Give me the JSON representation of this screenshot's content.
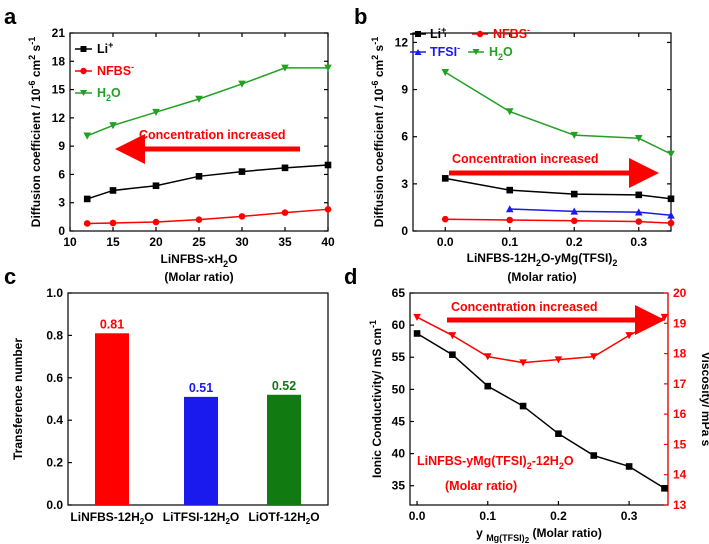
{
  "chart_data": [
    {
      "panel": "a",
      "type": "line",
      "xlabel": "LiNFBS-xH2O",
      "xlabel_note": "(Molar ratio)",
      "ylabel": "Diffusion coefficient / 10-6 cm2 s-1",
      "xlim": [
        10,
        40
      ],
      "ylim": [
        0,
        21
      ],
      "xticks": [
        10,
        15,
        20,
        25,
        30,
        35,
        40
      ],
      "yticks": [
        0,
        3,
        6,
        9,
        12,
        15,
        18,
        21
      ],
      "annotation": "Concentration increased",
      "series": [
        {
          "name": "Li+",
          "color": "#000000",
          "marker": "square",
          "x": [
            12,
            15,
            20,
            25,
            30,
            35,
            40
          ],
          "y": [
            3.4,
            4.3,
            4.8,
            5.8,
            6.3,
            6.7,
            7.0
          ]
        },
        {
          "name": "NFBS-",
          "color": "#ff0000",
          "marker": "circle",
          "x": [
            12,
            15,
            20,
            25,
            30,
            35,
            40
          ],
          "y": [
            0.8,
            0.85,
            0.95,
            1.2,
            1.55,
            1.95,
            2.3
          ]
        },
        {
          "name": "H2O",
          "color": "#22a022",
          "marker": "triangle-down",
          "x": [
            12,
            15,
            20,
            25,
            30,
            35,
            40
          ],
          "y": [
            10.1,
            11.2,
            12.6,
            14.0,
            15.6,
            17.3,
            17.3
          ]
        }
      ]
    },
    {
      "panel": "b",
      "type": "line",
      "xlabel": "LiNFBS-12H2O-yMg(TFSI)2",
      "xlabel_note": "(Molar ratio)",
      "ylabel": "Diffusion coefficient / 10-6 cm2 s-1",
      "xlim": [
        -0.05,
        0.35
      ],
      "ylim": [
        0,
        12.6
      ],
      "xticks": [
        0.0,
        0.1,
        0.2,
        0.3
      ],
      "yticks": [
        0,
        3,
        6,
        9,
        12
      ],
      "annotation": "Concentration increased",
      "series": [
        {
          "name": "Li+",
          "color": "#000000",
          "marker": "square",
          "x": [
            0.0,
            0.1,
            0.2,
            0.3,
            0.35
          ],
          "y": [
            3.35,
            2.6,
            2.35,
            2.3,
            2.05
          ]
        },
        {
          "name": "NFBS-",
          "color": "#ff0000",
          "marker": "circle",
          "x": [
            0.0,
            0.1,
            0.2,
            0.3,
            0.35
          ],
          "y": [
            0.75,
            0.7,
            0.65,
            0.6,
            0.5
          ]
        },
        {
          "name": "TFSI-",
          "color": "#1a1aee",
          "marker": "triangle-up",
          "x": [
            0.1,
            0.2,
            0.3,
            0.35
          ],
          "y": [
            1.4,
            1.25,
            1.2,
            1.0
          ]
        },
        {
          "name": "H2O",
          "color": "#22a022",
          "marker": "triangle-down",
          "x": [
            0.0,
            0.1,
            0.2,
            0.3,
            0.35
          ],
          "y": [
            10.1,
            7.6,
            6.1,
            5.9,
            4.9
          ]
        }
      ]
    },
    {
      "panel": "c",
      "type": "bar",
      "ylabel": "Transference number",
      "ylim": [
        0.0,
        1.0
      ],
      "yticks": [
        0.0,
        0.2,
        0.4,
        0.6,
        0.8,
        1.0
      ],
      "categories": [
        "LiNFBS-12H2O",
        "LiTFSI-12H2O",
        "LiOTf-12H2O"
      ],
      "values": [
        0.81,
        0.51,
        0.52
      ],
      "data_labels": [
        "0.81",
        "0.51",
        "0.52"
      ],
      "colors": [
        "#ff0000",
        "#1a1aee",
        "#117a11"
      ]
    },
    {
      "panel": "d",
      "type": "line",
      "xlabel": "y Mg(TFSI)2 (Molar ratio)",
      "ylabel_left": "Ionic Conductivity/ mS cm-1",
      "ylabel_right": "Viscosity/ mPa s",
      "xlim": [
        -0.01,
        0.355
      ],
      "ylim_left": [
        32,
        65
      ],
      "ylim_right": [
        13,
        20
      ],
      "xticks": [
        0.0,
        0.1,
        0.2,
        0.3
      ],
      "yticks_left": [
        35,
        40,
        45,
        50,
        55,
        60,
        65
      ],
      "yticks_right": [
        13,
        14,
        15,
        16,
        17,
        18,
        19,
        20
      ],
      "annotation": "Concentration increased",
      "inset_label": "LiNFBS-yMg(TFSI)2-12H2O",
      "inset_label_note": "(Molar ratio)",
      "series": [
        {
          "name": "Ionic Conductivity",
          "axis": "left",
          "color": "#000000",
          "marker": "square",
          "x": [
            0.0,
            0.05,
            0.1,
            0.15,
            0.2,
            0.25,
            0.3,
            0.35
          ],
          "y": [
            58.7,
            55.4,
            50.5,
            47.4,
            43.1,
            39.7,
            38.0,
            34.6
          ]
        },
        {
          "name": "Viscosity",
          "axis": "right",
          "color": "#ff0000",
          "marker": "triangle-down",
          "x": [
            0.0,
            0.05,
            0.1,
            0.15,
            0.2,
            0.25,
            0.3,
            0.35
          ],
          "y": [
            19.2,
            18.6,
            17.9,
            17.7,
            17.8,
            17.9,
            18.6,
            19.2
          ]
        }
      ]
    }
  ],
  "panels": {
    "a": {
      "letter": "a"
    },
    "b": {
      "letter": "b"
    },
    "c": {
      "letter": "c"
    },
    "d": {
      "letter": "d"
    }
  },
  "legend": {
    "li": "Li",
    "li_sup": "+",
    "nfbs": "NFBS",
    "nfbs_sup": "-",
    "tfsi": "TFSI",
    "tfsi_sup": "-",
    "h2o_h": "H",
    "h2o_sub": "2",
    "h2o_o": "O"
  },
  "labels": {
    "annotation": "Concentration increased",
    "diff_a": "Diffusion coefficient / 10",
    "diff_b": "-6",
    "diff_c": " cm",
    "diff_d": "2",
    "diff_e": " s",
    "diff_f": "-1",
    "xa_main": "LiNFBS-xH",
    "xa_sub": "2",
    "xa_end": "O",
    "xb_a": "LiNFBS-12H",
    "xb_b": "2",
    "xb_c": "O-yMg(TFSI)",
    "xb_d": "2",
    "molar": "(Molar ratio)",
    "yc": "Transference number",
    "cat1_a": "LiNFBS-12H",
    "cat1_b": "2",
    "cat1_c": "O",
    "cat2_a": "LiTFSI-12H",
    "cat2_b": "2",
    "cat2_c": "O",
    "cat3_a": "LiOTf-12H",
    "cat3_b": "2",
    "cat3_c": "O",
    "yd_left_a": "Ionic Conductivity/ mS cm",
    "yd_left_b": "-1",
    "yd_right": "Viscosity/ mPa s",
    "xd_a": "y ",
    "xd_b": "Mg(TFSI)",
    "xd_c": "2",
    "xd_d": " (Molar ratio)",
    "inset_a": "LiNFBS-yMg(TFSI)",
    "inset_b": "2",
    "inset_c": "-12H",
    "inset_d": "2",
    "inset_e": "O"
  }
}
